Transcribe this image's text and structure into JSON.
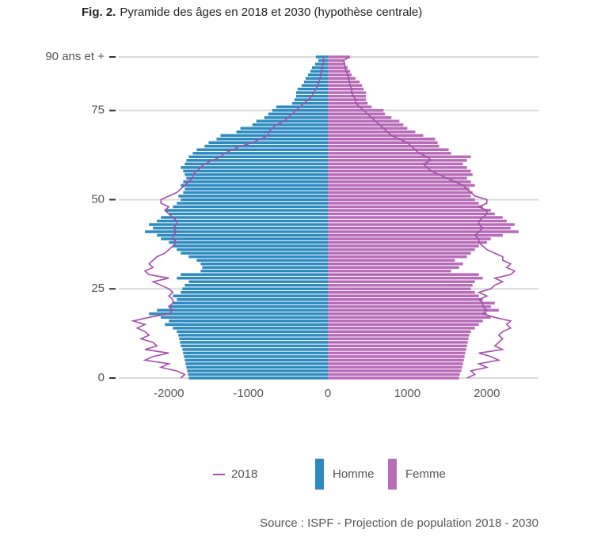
{
  "chart_data": {
    "type": "pyramid",
    "title_prefix": "Fig. 2.",
    "title": "Pyramide des âges en 2018 et 2030 (hypothèse centrale)",
    "source": "Source : ISPF - Projection de population 2018 - 2030",
    "y": [
      0,
      1,
      2,
      3,
      4,
      5,
      6,
      7,
      8,
      9,
      10,
      11,
      12,
      13,
      14,
      15,
      16,
      17,
      18,
      19,
      20,
      21,
      22,
      23,
      24,
      25,
      26,
      27,
      28,
      29,
      30,
      31,
      32,
      33,
      34,
      35,
      36,
      37,
      38,
      39,
      40,
      41,
      42,
      43,
      44,
      45,
      46,
      47,
      48,
      49,
      50,
      51,
      52,
      53,
      54,
      55,
      56,
      57,
      58,
      59,
      60,
      61,
      62,
      63,
      64,
      65,
      66,
      67,
      68,
      69,
      70,
      71,
      72,
      73,
      74,
      75,
      76,
      77,
      78,
      79,
      80,
      81,
      82,
      83,
      84,
      85,
      86,
      87,
      88,
      89,
      90
    ],
    "series": [
      {
        "name": "Homme",
        "color": "#2e8bc0",
        "values": [
          -1750,
          -1760,
          -1770,
          -1780,
          -1790,
          -1800,
          -1810,
          -1820,
          -1830,
          -1850,
          -1860,
          -1870,
          -1880,
          -1900,
          -1950,
          -2050,
          -2000,
          -2100,
          -2250,
          -2150,
          -2000,
          -1950,
          -1900,
          -1950,
          -1850,
          -1830,
          -1800,
          -1750,
          -1900,
          -1850,
          -1600,
          -1580,
          -1600,
          -1650,
          -1750,
          -1850,
          -1900,
          -1950,
          -2000,
          -2100,
          -2150,
          -2300,
          -2200,
          -2250,
          -2150,
          -2100,
          -2000,
          -2050,
          -1950,
          -1900,
          -1850,
          -1880,
          -1820,
          -1800,
          -1850,
          -1820,
          -1780,
          -1800,
          -1820,
          -1850,
          -1800,
          -1780,
          -1750,
          -1700,
          -1650,
          -1550,
          -1500,
          -1400,
          -1350,
          -1150,
          -1100,
          -950,
          -900,
          -800,
          -750,
          -700,
          -650,
          -450,
          -420,
          -400,
          -400,
          -380,
          -330,
          -300,
          -280,
          -250,
          -220,
          -200,
          -160,
          -120,
          -150
        ]
      },
      {
        "name": "Femme",
        "color": "#b86cb8",
        "values": [
          1650,
          1660,
          1680,
          1690,
          1700,
          1710,
          1720,
          1730,
          1740,
          1750,
          1760,
          1770,
          1780,
          1800,
          1850,
          1900,
          1950,
          2050,
          2000,
          2150,
          2050,
          2100,
          1950,
          1900,
          1850,
          1800,
          1820,
          1850,
          1950,
          1900,
          1550,
          1650,
          1700,
          1600,
          1750,
          1800,
          1850,
          1900,
          2000,
          2050,
          2200,
          2400,
          2300,
          2350,
          2250,
          2200,
          2100,
          2050,
          1950,
          1900,
          1850,
          1800,
          1820,
          1780,
          1850,
          1800,
          1750,
          1820,
          1800,
          1750,
          1700,
          1750,
          1800,
          1550,
          1520,
          1400,
          1380,
          1350,
          1200,
          1100,
          1000,
          950,
          900,
          800,
          720,
          700,
          550,
          500,
          480,
          480,
          480,
          450,
          430,
          400,
          350,
          300,
          280,
          250,
          220,
          200,
          280
        ]
      }
    ],
    "line": {
      "name": "2018",
      "color": "#a24fa8",
      "homme": [
        -1850,
        -1800,
        -1900,
        -2100,
        -2000,
        -2300,
        -2200,
        -2000,
        -2300,
        -2150,
        -2200,
        -2350,
        -2250,
        -2300,
        -2400,
        -2300,
        -2450,
        -2250,
        -2000,
        -1950,
        -2000,
        -1950,
        -1950,
        -2000,
        -1950,
        -2000,
        -2100,
        -2200,
        -2000,
        -2250,
        -2300,
        -2200,
        -2250,
        -2200,
        -2150,
        -2050,
        -2000,
        -1950,
        -1900,
        -1950,
        -1950,
        -1900,
        -1950,
        -1900,
        -1900,
        -1950,
        -2000,
        -2050,
        -2000,
        -2100,
        -2100,
        -2000,
        -1900,
        -1850,
        -1800,
        -1750,
        -1700,
        -1700,
        -1650,
        -1600,
        -1550,
        -1450,
        -1350,
        -1300,
        -1200,
        -1100,
        -950,
        -850,
        -750,
        -750,
        -700,
        -650,
        -550,
        -500,
        -450,
        -400,
        -350,
        -300,
        -250,
        -200,
        -180,
        -150,
        -130,
        -110,
        -100,
        -90,
        -80,
        -70,
        -60,
        -50,
        -60
      ],
      "femme": [
        1750,
        1850,
        1800,
        2000,
        1900,
        2150,
        2050,
        1900,
        2200,
        2100,
        2150,
        2200,
        2150,
        2200,
        2300,
        2250,
        2300,
        2100,
        1950,
        2000,
        1950,
        1950,
        1900,
        2000,
        1900,
        2050,
        2100,
        2200,
        2100,
        2300,
        2350,
        2250,
        2300,
        2200,
        2200,
        2100,
        2000,
        1950,
        1900,
        1900,
        1850,
        1900,
        1950,
        1900,
        1900,
        1950,
        2000,
        2000,
        1900,
        2000,
        2000,
        1850,
        1800,
        1750,
        1700,
        1600,
        1500,
        1400,
        1300,
        1250,
        1200,
        1300,
        1250,
        1150,
        1100,
        1050,
        1000,
        900,
        800,
        750,
        700,
        650,
        600,
        550,
        500,
        450,
        400,
        350,
        350,
        320,
        300,
        300,
        280,
        270,
        260,
        250,
        230,
        220,
        210,
        200,
        270
      ]
    },
    "xlim": [
      -2650,
      2650
    ],
    "xticks": [
      -2000,
      -1000,
      0,
      1000,
      2000
    ],
    "ylim": [
      -1,
      91
    ],
    "yticks": [
      0,
      25,
      50,
      75,
      {
        "value": 90,
        "label": "90 ans et +"
      }
    ],
    "grid": true
  }
}
